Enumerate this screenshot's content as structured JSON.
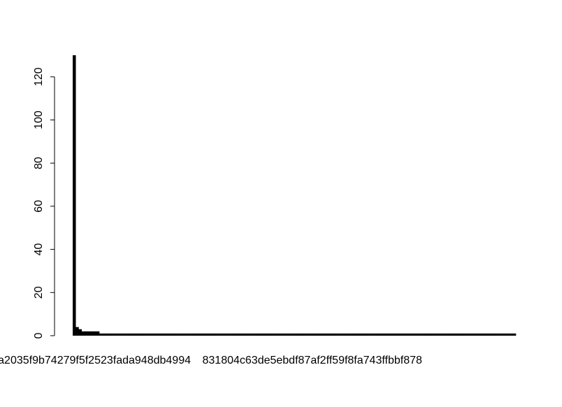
{
  "chart_data": {
    "type": "bar",
    "color": "#000000",
    "categories": [
      "a2035f9b74279f5f2523fada948db4994",
      null,
      null,
      null,
      null,
      null,
      null,
      null,
      null,
      null,
      null,
      null,
      null,
      null,
      null,
      null,
      null,
      null,
      null,
      null,
      null,
      null,
      null,
      null,
      null,
      null,
      null,
      null,
      null,
      null,
      null,
      null,
      null,
      null,
      null,
      null,
      null,
      null,
      null,
      null,
      null,
      null,
      null,
      null,
      null,
      null,
      null,
      null,
      null,
      null,
      null,
      null,
      null,
      null,
      null,
      null,
      null,
      null,
      null,
      null,
      null,
      null,
      null,
      null,
      null,
      null,
      null,
      null,
      null,
      null,
      null,
      null,
      null,
      null,
      null,
      null,
      null,
      null,
      null,
      null,
      null,
      null,
      "831804c63de5ebdf87af2ff59f8fa743ffbbf878",
      null,
      null,
      null,
      null,
      null,
      null,
      null,
      null,
      null,
      null,
      null,
      null,
      null,
      null,
      null,
      null,
      null,
      null,
      null,
      null,
      null,
      null,
      null,
      null,
      null,
      null,
      null,
      null,
      null,
      null,
      null,
      null,
      null,
      null,
      null,
      null,
      null,
      null,
      null,
      null,
      null,
      null,
      null,
      null,
      null,
      null,
      null,
      null,
      null,
      null,
      null,
      null,
      null,
      null,
      null,
      null,
      null,
      null,
      null,
      null,
      null,
      null,
      null,
      null,
      null,
      null,
      null
    ],
    "values": [
      130,
      4,
      3,
      2,
      2,
      2,
      2,
      2,
      2,
      1,
      1,
      1,
      1,
      1,
      1,
      1,
      1,
      1,
      1,
      1,
      1,
      1,
      1,
      1,
      1,
      1,
      1,
      1,
      1,
      1,
      1,
      1,
      1,
      1,
      1,
      1,
      1,
      1,
      1,
      1,
      1,
      1,
      1,
      1,
      1,
      1,
      1,
      1,
      1,
      1,
      1,
      1,
      1,
      1,
      1,
      1,
      1,
      1,
      1,
      1,
      1,
      1,
      1,
      1,
      1,
      1,
      1,
      1,
      1,
      1,
      1,
      1,
      1,
      1,
      1,
      1,
      1,
      1,
      1,
      1,
      1,
      1,
      1,
      1,
      1,
      1,
      1,
      1,
      1,
      1,
      1,
      1,
      1,
      1,
      1,
      1,
      1,
      1,
      1,
      1,
      1,
      1,
      1,
      1,
      1,
      1,
      1,
      1,
      1,
      1,
      1,
      1,
      1,
      1,
      1,
      1,
      1,
      1,
      1,
      1,
      1,
      1,
      1,
      1,
      1,
      1,
      1,
      1,
      1,
      1,
      1,
      1,
      1,
      1,
      1,
      1,
      1,
      1,
      1,
      1,
      1,
      1,
      1,
      1,
      1,
      1,
      1,
      1,
      1,
      1
    ],
    "ylim": [
      0,
      130
    ],
    "yticks": [
      0,
      20,
      40,
      60,
      80,
      100,
      120
    ]
  }
}
